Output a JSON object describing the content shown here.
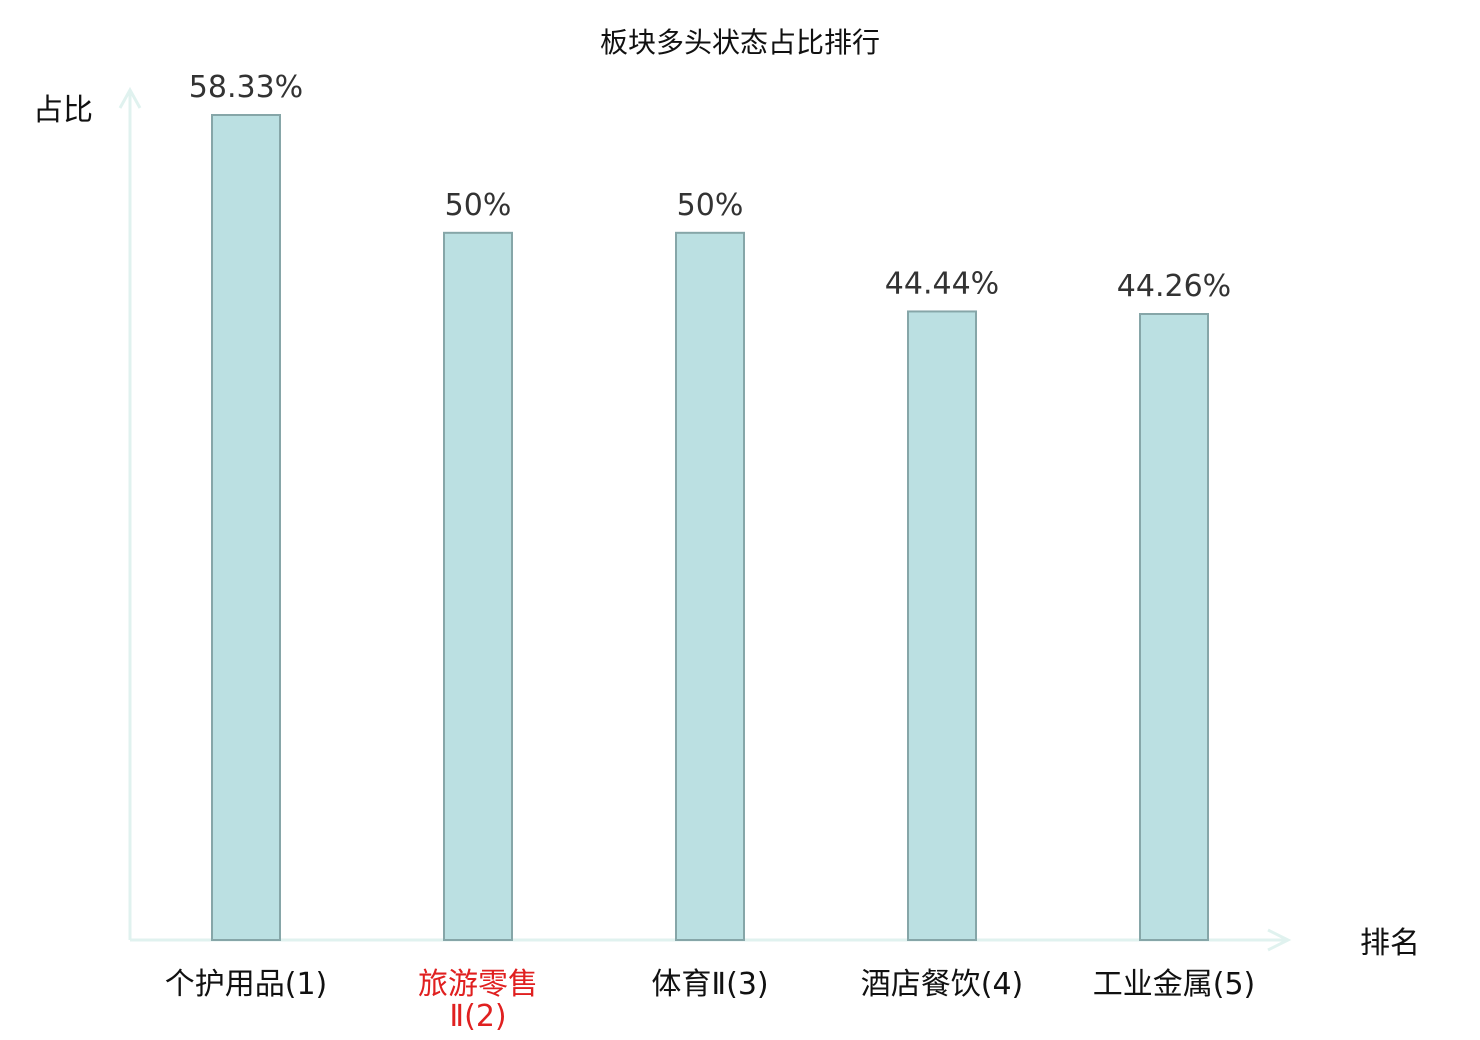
{
  "chart_data": {
    "type": "bar",
    "title": "板块多头状态占比排行",
    "xlabel": "排名",
    "ylabel": "占比",
    "ylim": [
      0,
      60
    ],
    "grid": false,
    "categories": [
      "个护用品",
      "旅游零售Ⅱ",
      "体育Ⅱ",
      "酒店餐饮",
      "工业金属"
    ],
    "category_lines": [
      [
        "个护用品(1)"
      ],
      [
        "旅游零售",
        "Ⅱ(2)"
      ],
      [
        "体育Ⅱ(3)"
      ],
      [
        "酒店餐饮(4)"
      ],
      [
        "工业金属(5)"
      ]
    ],
    "ranks": [
      1,
      2,
      3,
      4,
      5
    ],
    "values": [
      58.33,
      50,
      50,
      44.44,
      44.26
    ],
    "value_labels": [
      "58.33%",
      "50%",
      "50%",
      "44.44%",
      "44.26%"
    ],
    "highlight_index": 1,
    "colors": {
      "bar_fill": "#bbe0e2",
      "bar_stroke": "#86a6a8",
      "axis": "#e0f2ef",
      "highlight_text": "#e02020",
      "text": "#111111",
      "rank_text": "#444444"
    }
  }
}
